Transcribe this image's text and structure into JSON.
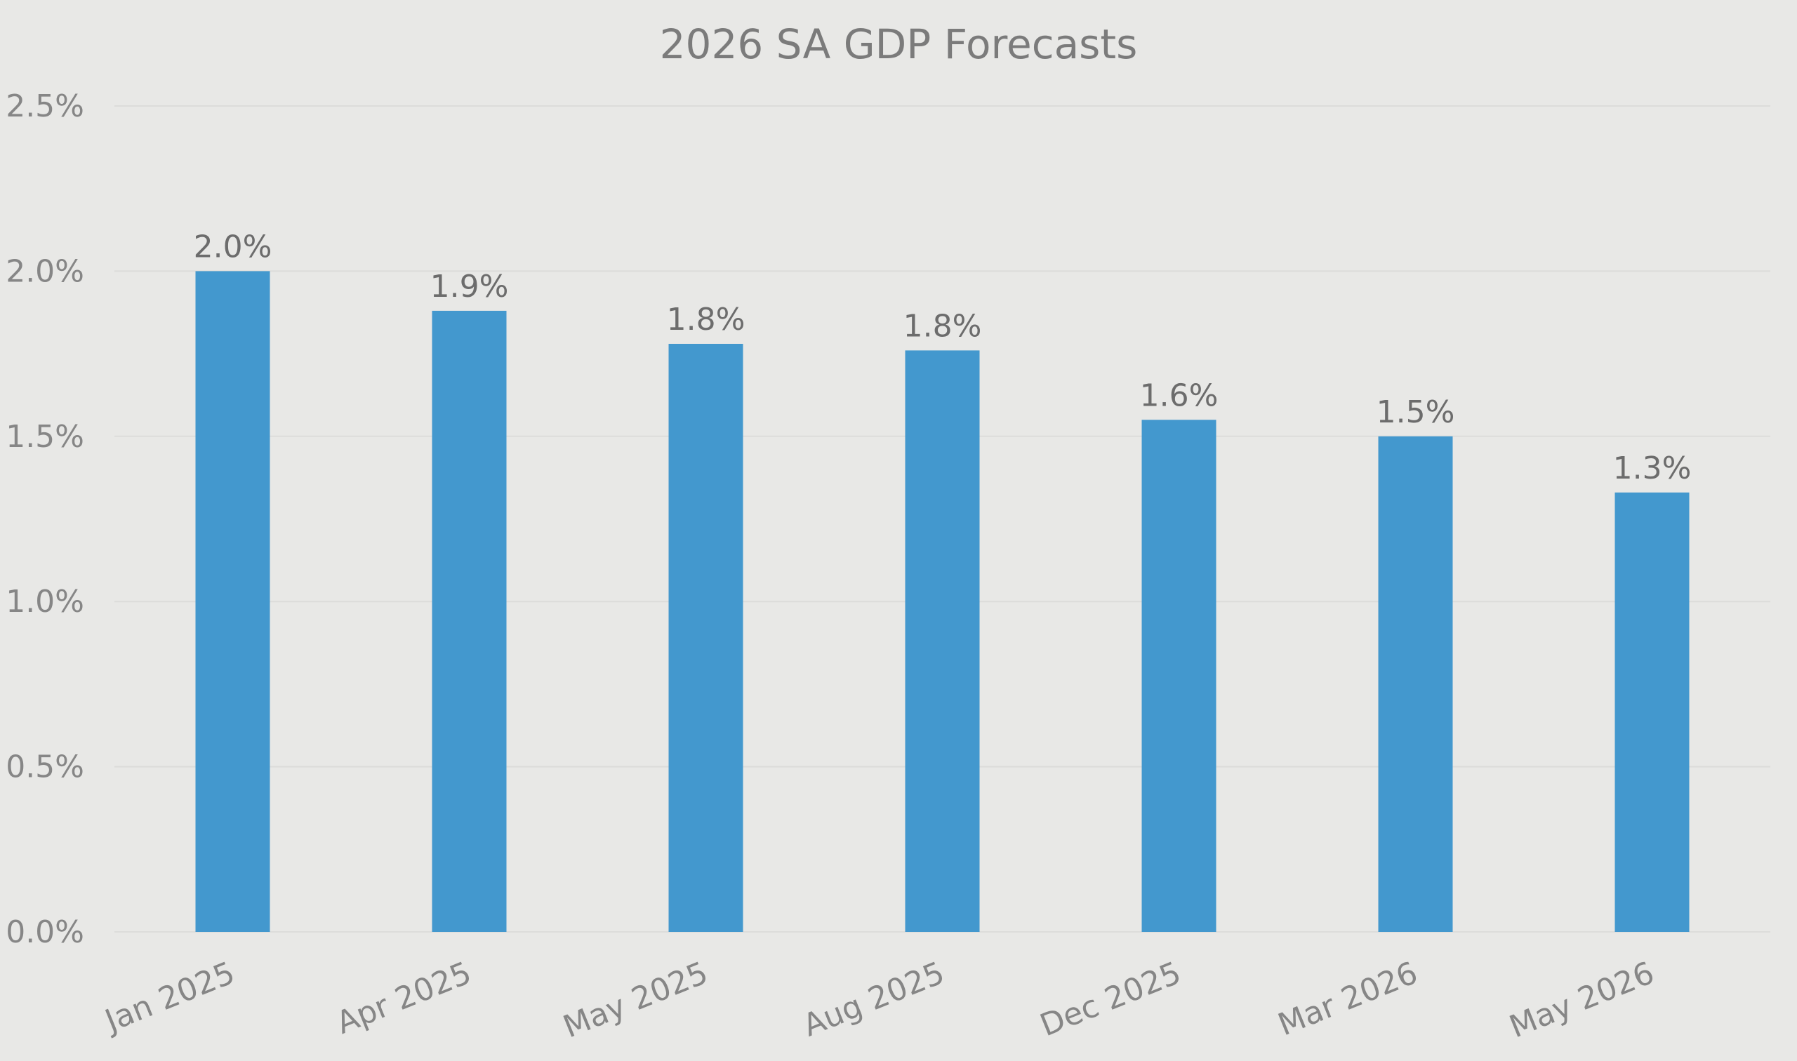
{
  "chart_data": {
    "type": "bar",
    "title": "2026 SA GDP Forecasts",
    "xlabel": "",
    "ylabel": "",
    "categories": [
      "Jan 2025",
      "Apr 2025",
      "May 2025",
      "Aug 2025",
      "Dec 2025",
      "Mar 2026",
      "May 2026"
    ],
    "values": [
      2.0,
      1.88,
      1.78,
      1.76,
      1.55,
      1.5,
      1.33
    ],
    "data_labels": [
      "2.0%",
      "1.9%",
      "1.8%",
      "1.8%",
      "1.6%",
      "1.5%",
      "1.3%"
    ],
    "ylim": [
      0,
      2.5
    ],
    "yticks": [
      0,
      0.5,
      1.0,
      1.5,
      2.0,
      2.5
    ],
    "ytick_labels": [
      "0.0%",
      "0.5%",
      "1.0%",
      "1.5%",
      "2.0%",
      "2.5%"
    ],
    "grid": true,
    "legend": "none",
    "colors": {
      "bar": "#4398ce",
      "background": "#e8e8e6",
      "gridline": "#dcdcda",
      "text": "#868686"
    }
  }
}
